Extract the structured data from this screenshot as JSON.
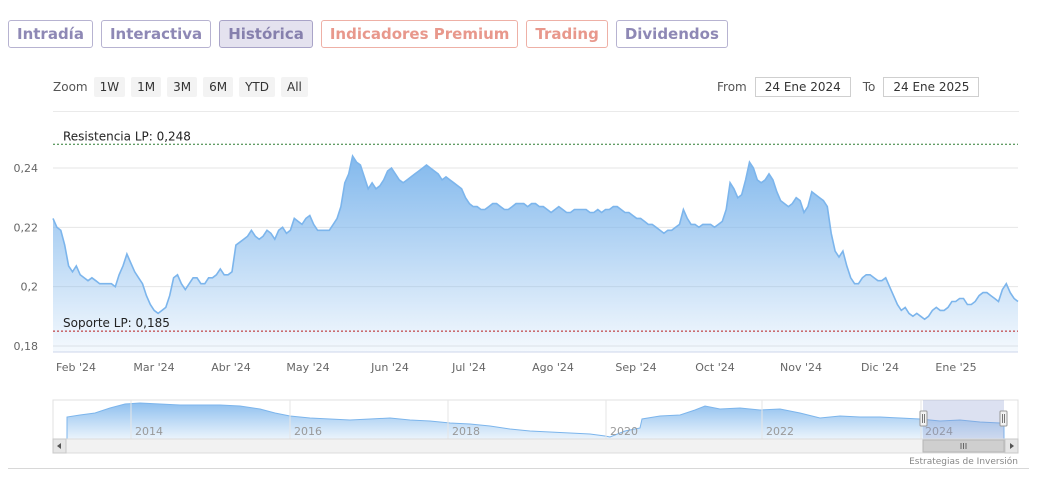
{
  "tabs": {
    "intradia": "Intradía",
    "interactiva": "Interactiva",
    "historica": "Histórica",
    "premium": "Indicadores Premium",
    "trading": "Trading",
    "dividendos": "Dividendos"
  },
  "zoom": {
    "label": "Zoom",
    "b1w": "1W",
    "b1m": "1M",
    "b3m": "3M",
    "b6m": "6M",
    "bytd": "YTD",
    "ball": "All"
  },
  "range": {
    "from_label": "From",
    "from_value": "24 Ene 2024",
    "to_label": "To",
    "to_value": "24 Ene 2025"
  },
  "credit": "Estrategias de Inversión",
  "chart_data": {
    "type": "area",
    "x_ticks": [
      "Feb '24",
      "Mar '24",
      "Abr '24",
      "May '24",
      "Jun '24",
      "Jul '24",
      "Ago '24",
      "Sep '24",
      "Oct '24",
      "Nov '24",
      "Dic '24",
      "Ene '25"
    ],
    "y_ticks": [
      "0,18",
      "0,2",
      "0,22",
      "0,24"
    ],
    "ylim": [
      0.178,
      0.25
    ],
    "series_values": [
      0.223,
      0.22,
      0.219,
      0.214,
      0.207,
      0.205,
      0.207,
      0.204,
      0.203,
      0.202,
      0.203,
      0.202,
      0.201,
      0.201,
      0.201,
      0.201,
      0.2,
      0.204,
      0.207,
      0.211,
      0.208,
      0.205,
      0.203,
      0.201,
      0.197,
      0.194,
      0.192,
      0.191,
      0.192,
      0.193,
      0.197,
      0.203,
      0.204,
      0.201,
      0.199,
      0.201,
      0.203,
      0.203,
      0.201,
      0.201,
      0.203,
      0.203,
      0.204,
      0.206,
      0.204,
      0.204,
      0.205,
      0.214,
      0.215,
      0.216,
      0.217,
      0.219,
      0.217,
      0.216,
      0.217,
      0.219,
      0.218,
      0.216,
      0.219,
      0.22,
      0.218,
      0.219,
      0.223,
      0.222,
      0.221,
      0.223,
      0.224,
      0.221,
      0.219,
      0.219,
      0.219,
      0.219,
      0.221,
      0.223,
      0.227,
      0.235,
      0.238,
      0.244,
      0.242,
      0.241,
      0.237,
      0.233,
      0.235,
      0.233,
      0.234,
      0.236,
      0.239,
      0.24,
      0.238,
      0.236,
      0.235,
      0.236,
      0.237,
      0.238,
      0.239,
      0.24,
      0.241,
      0.24,
      0.239,
      0.238,
      0.236,
      0.237,
      0.236,
      0.235,
      0.234,
      0.233,
      0.23,
      0.228,
      0.227,
      0.227,
      0.226,
      0.226,
      0.227,
      0.228,
      0.228,
      0.227,
      0.226,
      0.226,
      0.227,
      0.228,
      0.228,
      0.228,
      0.227,
      0.228,
      0.228,
      0.227,
      0.227,
      0.226,
      0.225,
      0.226,
      0.227,
      0.226,
      0.225,
      0.225,
      0.226,
      0.226,
      0.226,
      0.226,
      0.225,
      0.225,
      0.226,
      0.225,
      0.226,
      0.226,
      0.227,
      0.227,
      0.226,
      0.225,
      0.225,
      0.224,
      0.223,
      0.223,
      0.222,
      0.221,
      0.221,
      0.22,
      0.219,
      0.218,
      0.219,
      0.219,
      0.22,
      0.221,
      0.226,
      0.223,
      0.221,
      0.221,
      0.22,
      0.221,
      0.221,
      0.221,
      0.22,
      0.221,
      0.222,
      0.226,
      0.235,
      0.233,
      0.23,
      0.231,
      0.236,
      0.242,
      0.24,
      0.236,
      0.235,
      0.236,
      0.238,
      0.236,
      0.232,
      0.229,
      0.228,
      0.227,
      0.228,
      0.23,
      0.229,
      0.225,
      0.227,
      0.232,
      0.231,
      0.23,
      0.229,
      0.227,
      0.218,
      0.212,
      0.21,
      0.212,
      0.207,
      0.203,
      0.201,
      0.201,
      0.203,
      0.204,
      0.204,
      0.203,
      0.202,
      0.202,
      0.203,
      0.2,
      0.197,
      0.194,
      0.192,
      0.193,
      0.191,
      0.19,
      0.191,
      0.19,
      0.189,
      0.19,
      0.192,
      0.193,
      0.192,
      0.192,
      0.193,
      0.195,
      0.195,
      0.196,
      0.196,
      0.194,
      0.194,
      0.195,
      0.197,
      0.198,
      0.198,
      0.197,
      0.196,
      0.195,
      0.199,
      0.201,
      0.198,
      0.196,
      0.195
    ],
    "resistance": {
      "label": "Resistencia LP: 0,248",
      "value": 0.248
    },
    "support": {
      "label": "Soporte LP: 0,185",
      "value": 0.185
    },
    "navigator": {
      "years": [
        "2014",
        "2016",
        "2018",
        "2020",
        "2022",
        "2024"
      ]
    }
  }
}
